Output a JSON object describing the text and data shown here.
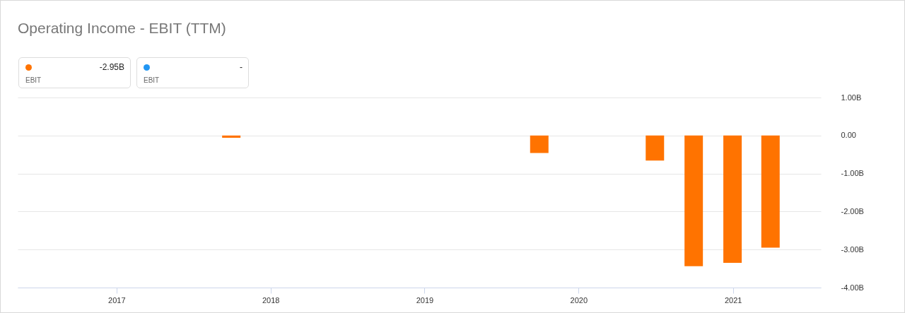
{
  "chart_data": {
    "type": "bar",
    "title": "Operating Income - EBIT (TTM)",
    "x": [
      "2017-09-30",
      "2019-09-30",
      "2020-06-30",
      "2020-09-30",
      "2020-12-31",
      "2021-03-31"
    ],
    "series": [
      {
        "color": "#ff7300",
        "values": [
          -0.06,
          -0.46,
          -0.66,
          -3.44,
          -3.35,
          -2.95
        ]
      }
    ],
    "xlim": [
      "2016-05-20",
      "2021-07-20"
    ],
    "xticks": [
      "2017",
      "2018",
      "2019",
      "2020",
      "2021"
    ],
    "ylim": [
      -4,
      1
    ],
    "yticks": [
      {
        "value": 1,
        "label": "1.00B"
      },
      {
        "value": 0,
        "label": "0.00"
      },
      {
        "value": -1,
        "label": "-1.00B"
      },
      {
        "value": -2,
        "label": "-2.00B"
      },
      {
        "value": -3,
        "label": "-3.00B"
      },
      {
        "value": -4,
        "label": "-4.00B"
      }
    ],
    "grid": "y",
    "annotations": [
      "-2.95B",
      "EBIT",
      "-",
      "EBIT"
    ]
  }
}
